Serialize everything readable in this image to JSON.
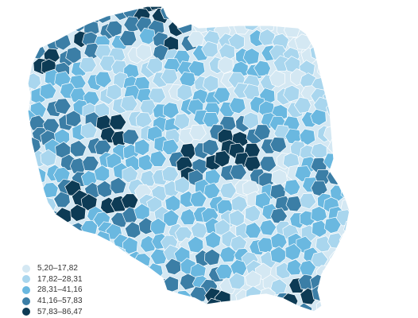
{
  "legend": {
    "items": [
      {
        "label": "5,20–17,82",
        "color": "#d4e8f3"
      },
      {
        "label": "17,82–28,31",
        "color": "#a9d6ee"
      },
      {
        "label": "28,31–41,16",
        "color": "#6ab8e0"
      },
      {
        "label": "41,16–57,83",
        "color": "#3b7ea6"
      },
      {
        "label": "57,83–86,47",
        "color": "#0d3b55"
      }
    ]
  },
  "map": {
    "region": "Poland",
    "division": "powiats",
    "border_color": "#ffffff",
    "background": "#ffffff"
  }
}
